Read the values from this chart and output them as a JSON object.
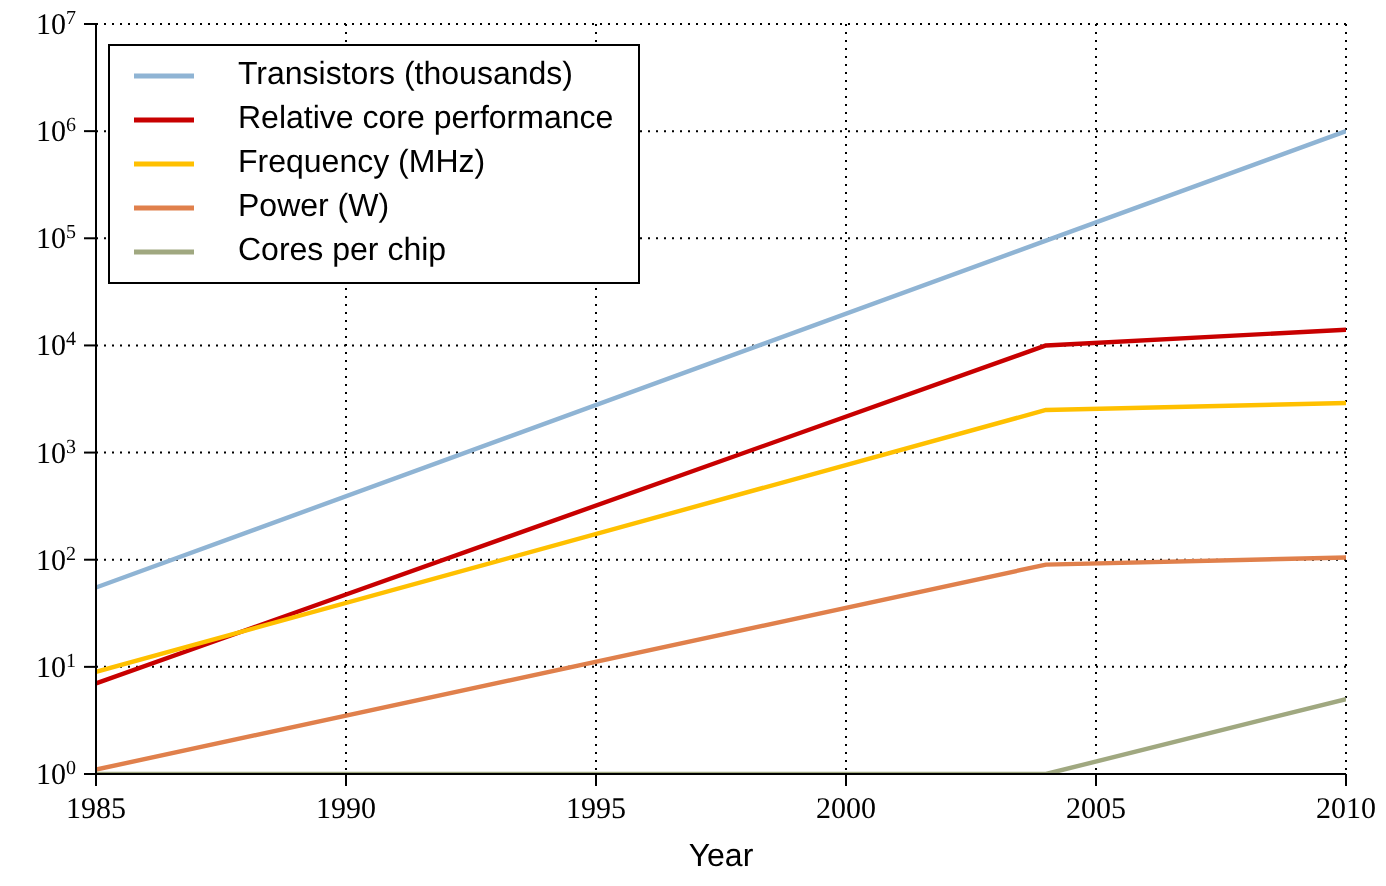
{
  "chart_data": {
    "type": "line",
    "xlabel": "Year",
    "x": [
      1985,
      2004,
      2010
    ],
    "series": [
      {
        "name": "Transistors (thousands)",
        "color": "#8fb4d4",
        "values": [
          55,
          95000,
          1000000
        ]
      },
      {
        "name": "Relative core performance",
        "color": "#c80000",
        "values": [
          7,
          10000,
          14000
        ]
      },
      {
        "name": "Frequency (MHz)",
        "color": "#ffc000",
        "values": [
          9,
          2500,
          2900
        ]
      },
      {
        "name": "Power (W)",
        "color": "#e0804c",
        "values": [
          1.1,
          90,
          105
        ]
      },
      {
        "name": "Cores per chip",
        "color": "#a0a880",
        "values": [
          1,
          1,
          5
        ]
      }
    ],
    "xlim": [
      1985,
      2010
    ],
    "xticks": [
      1985,
      1990,
      1995,
      2000,
      2005,
      2010
    ],
    "log": "y",
    "ylim": [
      1,
      10000000
    ],
    "yticks": [
      {
        "value": 1,
        "label": "10$^{0}$"
      },
      {
        "value": 10,
        "label": "10$^{1}$"
      },
      {
        "value": 100,
        "label": "10$^{2}$"
      },
      {
        "value": 1000,
        "label": "10$^{3}$"
      },
      {
        "value": 10000,
        "label": "10$^{4}$"
      },
      {
        "value": 100000,
        "label": "10$^{5}$"
      },
      {
        "value": 1000000,
        "label": "10$^{6}$"
      },
      {
        "value": 10000000,
        "label": "10$^{7}$"
      }
    ],
    "grid": true,
    "legend": "top left",
    "marker": "none",
    "line_style": "solid"
  }
}
